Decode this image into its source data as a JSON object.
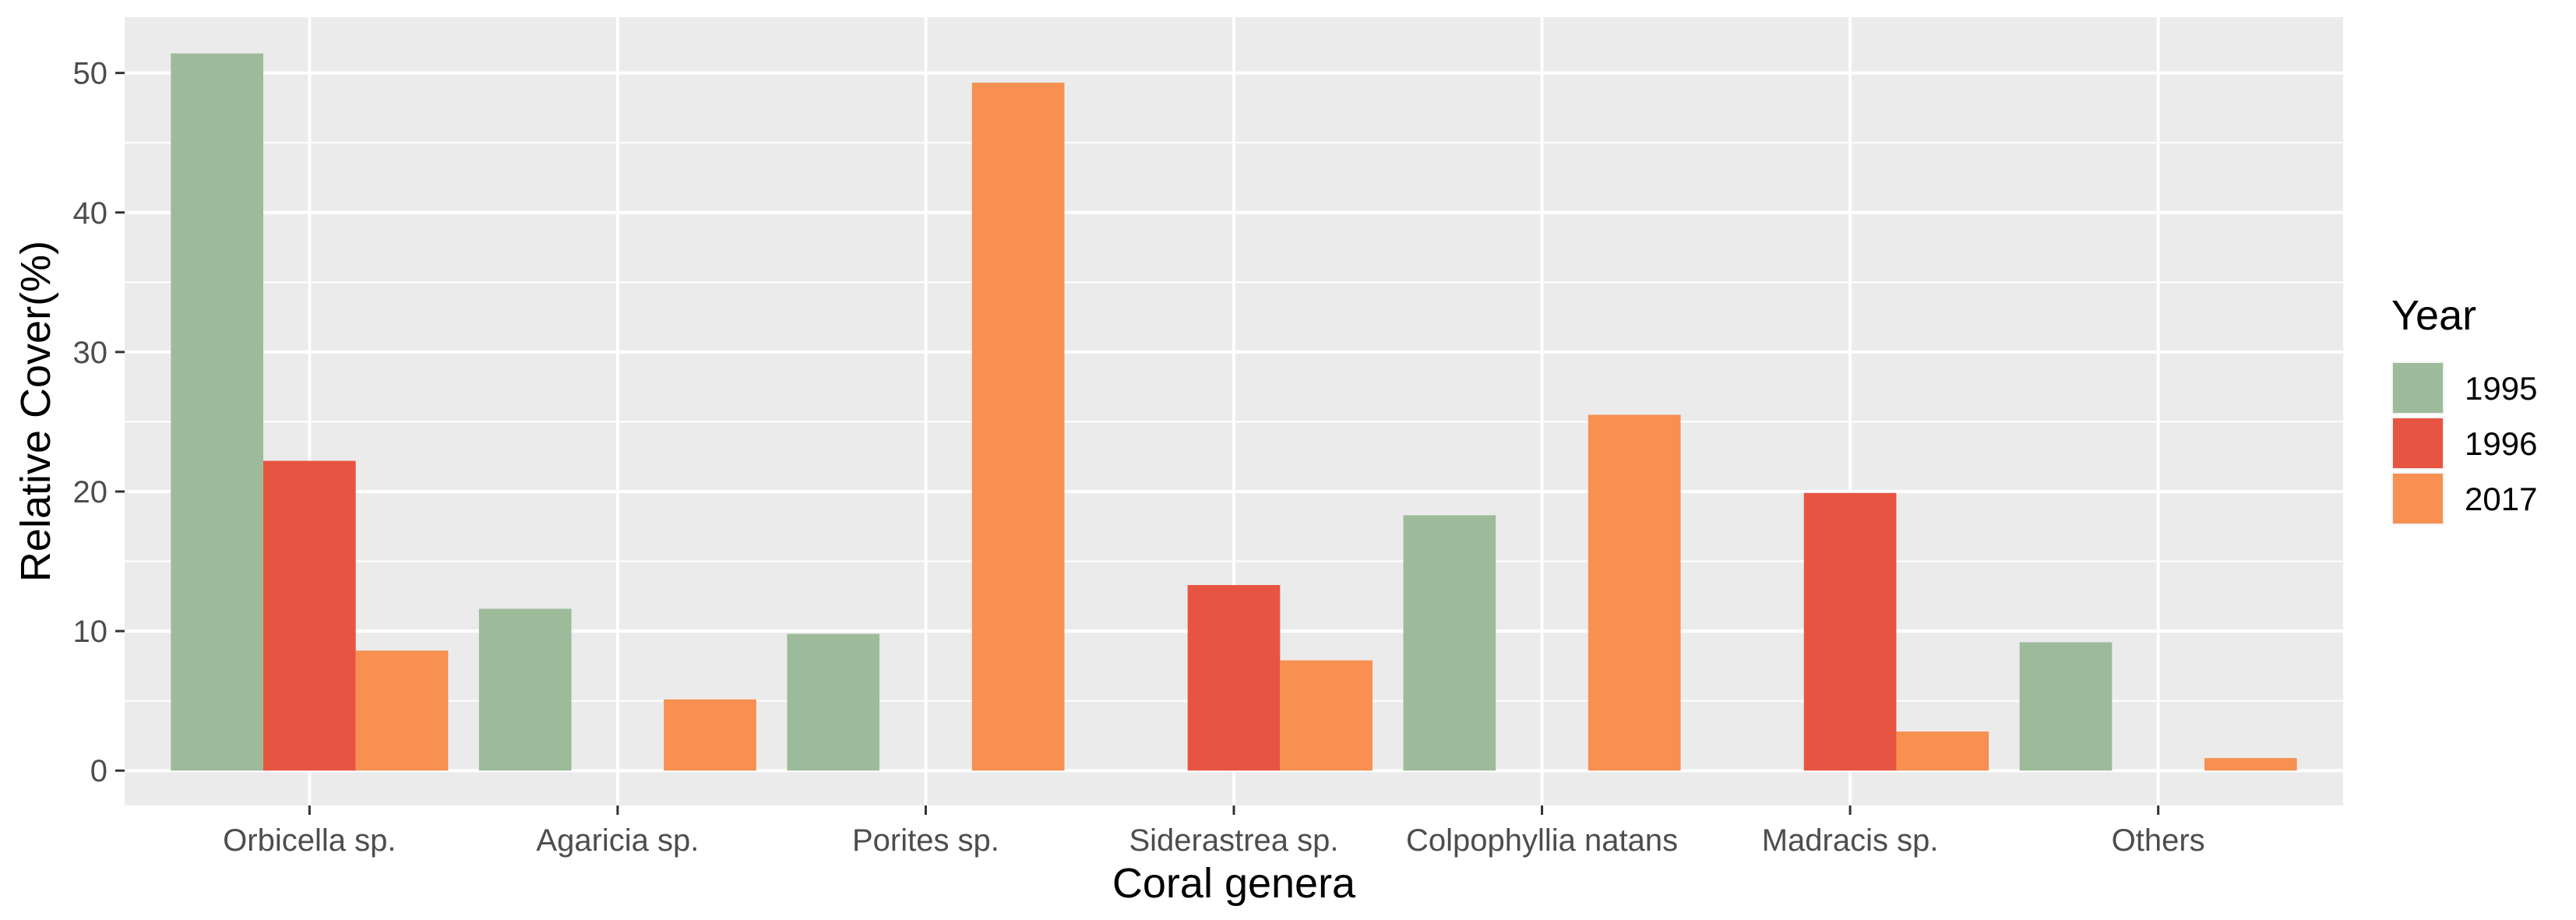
{
  "chart_data": {
    "type": "bar",
    "title": "",
    "xlabel": "Coral genera",
    "ylabel": "Relative Cover(%)",
    "ylim": [
      -2.5,
      54
    ],
    "yticks": [
      0,
      10,
      20,
      30,
      40,
      50
    ],
    "grid": true,
    "legend_position": "right",
    "legend_title": "Year",
    "categories": [
      "Orbicella sp.",
      "Agaricia sp.",
      "Porites sp.",
      "Siderastrea sp.",
      "Colpophyllia natans",
      "Madracis sp.",
      "Others"
    ],
    "series": [
      {
        "name": "1995",
        "color": "#9DBB9B",
        "values": [
          51.4,
          11.6,
          9.8,
          0,
          18.3,
          0,
          9.2
        ]
      },
      {
        "name": "1996",
        "color": "#E75542",
        "values": [
          22.2,
          0,
          0,
          13.3,
          0,
          19.9,
          0
        ]
      },
      {
        "name": "2017",
        "color": "#F79051",
        "values": [
          8.6,
          5.1,
          49.3,
          7.9,
          25.5,
          2.8,
          0.9
        ]
      }
    ]
  }
}
